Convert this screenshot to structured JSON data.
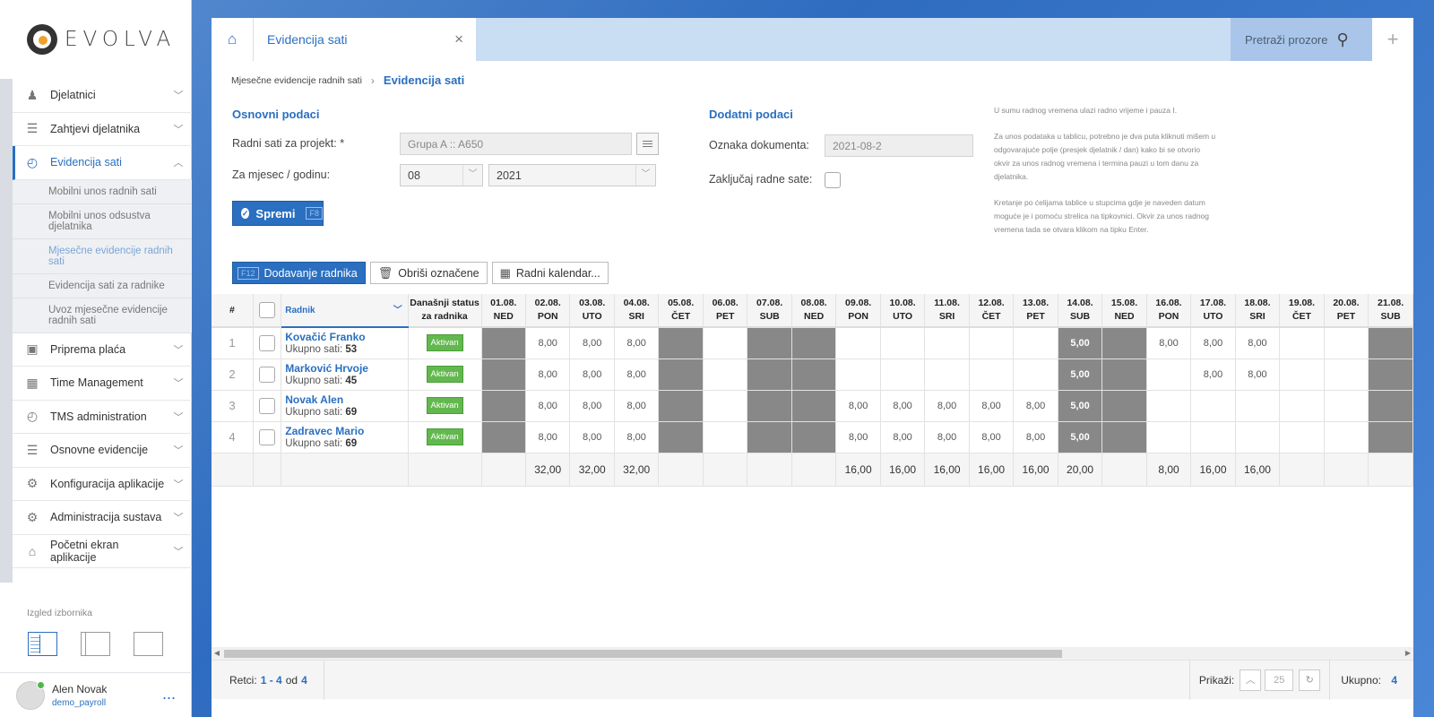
{
  "sidebar": {
    "brand": "EVOLVA",
    "items": [
      {
        "label": "Djelatnici",
        "icon": "person-icon",
        "glyph": "♟"
      },
      {
        "label": "Zahtjevi djelatnika",
        "icon": "list-icon",
        "glyph": "☰"
      },
      {
        "label": "Evidencija sati",
        "icon": "clock-icon",
        "glyph": "◴"
      },
      {
        "label": "Priprema plaća",
        "icon": "money-icon",
        "glyph": "▣"
      },
      {
        "label": "Time Management",
        "icon": "calendar-icon",
        "glyph": "▦"
      },
      {
        "label": "TMS administration",
        "icon": "clock-icon",
        "glyph": "◴"
      },
      {
        "label": "Osnovne evidencije",
        "icon": "list-icon",
        "glyph": "☰"
      },
      {
        "label": "Konfiguracija aplikacije",
        "icon": "gear-icon",
        "glyph": "⚙"
      },
      {
        "label": "Administracija sustava",
        "icon": "gears-icon",
        "glyph": "⚙"
      },
      {
        "label": "Početni ekran aplikacije",
        "icon": "home-icon",
        "glyph": "⌂"
      }
    ],
    "subitems": [
      "Mobilni unos radnih sati",
      "Mobilni unos odsustva djelatnika",
      "Mjesečne evidencije radnih sati",
      "Evidencija sati za radnike",
      "Uvoz mjesečne evidencije radnih sati"
    ],
    "menu_look_label": "Izgled izbornika",
    "user": {
      "name": "Alen Novak",
      "login": "demo_payroll",
      "more": "..."
    }
  },
  "tabbar": {
    "active_tab": "Evidencija sati",
    "close": "×",
    "search_label": "Pretraži prozore",
    "add": "+"
  },
  "breadcrumb": {
    "parent": "Mjesečne evidencije radnih sati",
    "current": "Evidencija sati"
  },
  "form": {
    "basic_title": "Osnovni podaci",
    "project_label": "Radni sati za projekt: *",
    "project_value": "Grupa A :: A650",
    "period_label": "Za mjesec / godinu:",
    "month": "08",
    "year": "2021",
    "save_label": "Spremi",
    "save_key": "F8",
    "extra_title": "Dodatni podaci",
    "doc_label": "Oznaka dokumenta:",
    "doc_value": "2021-08-2",
    "lock_label": "Zaključaj radne sate:"
  },
  "hint": [
    "U sumu radnog vremena ulazi radno vrijeme i pauza I.",
    "Za unos podataka u tablicu, potrebno je dva puta kliknuti mišem u odgovarajuće polje (presjek djelatnik / dan) kako bi se otvorio okvir za unos radnog vremena i termina pauzi u tom danu za djelatnika.",
    "Kretanje po ćelijama tablice u stupcima gdje je naveden datum moguće je i pomoću strelica na tipkovnici. Okvir za unos radnog vremena tada se otvara klikom na tipku Enter."
  ],
  "toolbar": {
    "add_key": "F12",
    "add_label": "Dodavanje radnika",
    "delete_label": "Obriši označene",
    "calendar_label": "Radni kalendar..."
  },
  "grid": {
    "col_num": "#",
    "col_worker": "Radnik",
    "col_status": [
      "Današnji status",
      "za radnika"
    ],
    "sum_prefix": "Ukupno sati:",
    "days": [
      {
        "d": "01.08.",
        "w": "NED"
      },
      {
        "d": "02.08.",
        "w": "PON"
      },
      {
        "d": "03.08.",
        "w": "UTO"
      },
      {
        "d": "04.08.",
        "w": "SRI"
      },
      {
        "d": "05.08.",
        "w": "ČET"
      },
      {
        "d": "06.08.",
        "w": "PET"
      },
      {
        "d": "07.08.",
        "w": "SUB"
      },
      {
        "d": "08.08.",
        "w": "NED"
      },
      {
        "d": "09.08.",
        "w": "PON"
      },
      {
        "d": "10.08.",
        "w": "UTO"
      },
      {
        "d": "11.08.",
        "w": "SRI"
      },
      {
        "d": "12.08.",
        "w": "ČET"
      },
      {
        "d": "13.08.",
        "w": "PET"
      },
      {
        "d": "14.08.",
        "w": "SUB"
      },
      {
        "d": "15.08.",
        "w": "NED"
      },
      {
        "d": "16.08.",
        "w": "PON"
      },
      {
        "d": "17.08.",
        "w": "UTO"
      },
      {
        "d": "18.08.",
        "w": "SRI"
      },
      {
        "d": "19.08.",
        "w": "ČET"
      },
      {
        "d": "20.08.",
        "w": "PET"
      },
      {
        "d": "21.08.",
        "w": "SUB"
      }
    ],
    "grey_days": [
      0,
      4,
      6,
      7,
      13,
      14,
      20
    ],
    "rows": [
      {
        "n": "1",
        "name": "Kovačić Franko",
        "sum": "53",
        "status": "Aktivan",
        "vals": [
          "",
          "8,00",
          "8,00",
          "8,00",
          "",
          "",
          "",
          "",
          "",
          "",
          "",
          "",
          "",
          "5,00",
          "",
          "8,00",
          "8,00",
          "8,00",
          "",
          "",
          ""
        ]
      },
      {
        "n": "2",
        "name": "Marković Hrvoje",
        "sum": "45",
        "status": "Aktivan",
        "vals": [
          "",
          "8,00",
          "8,00",
          "8,00",
          "",
          "",
          "",
          "",
          "",
          "",
          "",
          "",
          "",
          "5,00",
          "",
          "",
          "8,00",
          "8,00",
          "",
          "",
          ""
        ]
      },
      {
        "n": "3",
        "name": "Novak Alen",
        "sum": "69",
        "status": "Aktivan",
        "vals": [
          "",
          "8,00",
          "8,00",
          "8,00",
          "",
          "",
          "",
          "",
          "8,00",
          "8,00",
          "8,00",
          "8,00",
          "8,00",
          "5,00",
          "",
          "",
          "",
          "",
          "",
          "",
          ""
        ]
      },
      {
        "n": "4",
        "name": "Zadravec Mario",
        "sum": "69",
        "status": "Aktivan",
        "vals": [
          "",
          "8,00",
          "8,00",
          "8,00",
          "",
          "",
          "",
          "",
          "8,00",
          "8,00",
          "8,00",
          "8,00",
          "8,00",
          "5,00",
          "",
          "",
          "",
          "",
          "",
          "",
          ""
        ]
      }
    ],
    "totals": [
      "",
      "32,00",
      "32,00",
      "32,00",
      "",
      "",
      "",
      "",
      "16,00",
      "16,00",
      "16,00",
      "16,00",
      "16,00",
      "20,00",
      "",
      "8,00",
      "16,00",
      "16,00",
      "",
      "",
      ""
    ]
  },
  "footer": {
    "rows_label": "Retci:",
    "rows_range": "1 - 4",
    "of": "od",
    "rows_total": "4",
    "show_label": "Prikaži:",
    "page_size": "25",
    "total_label": "Ukupno:",
    "total": "4"
  }
}
